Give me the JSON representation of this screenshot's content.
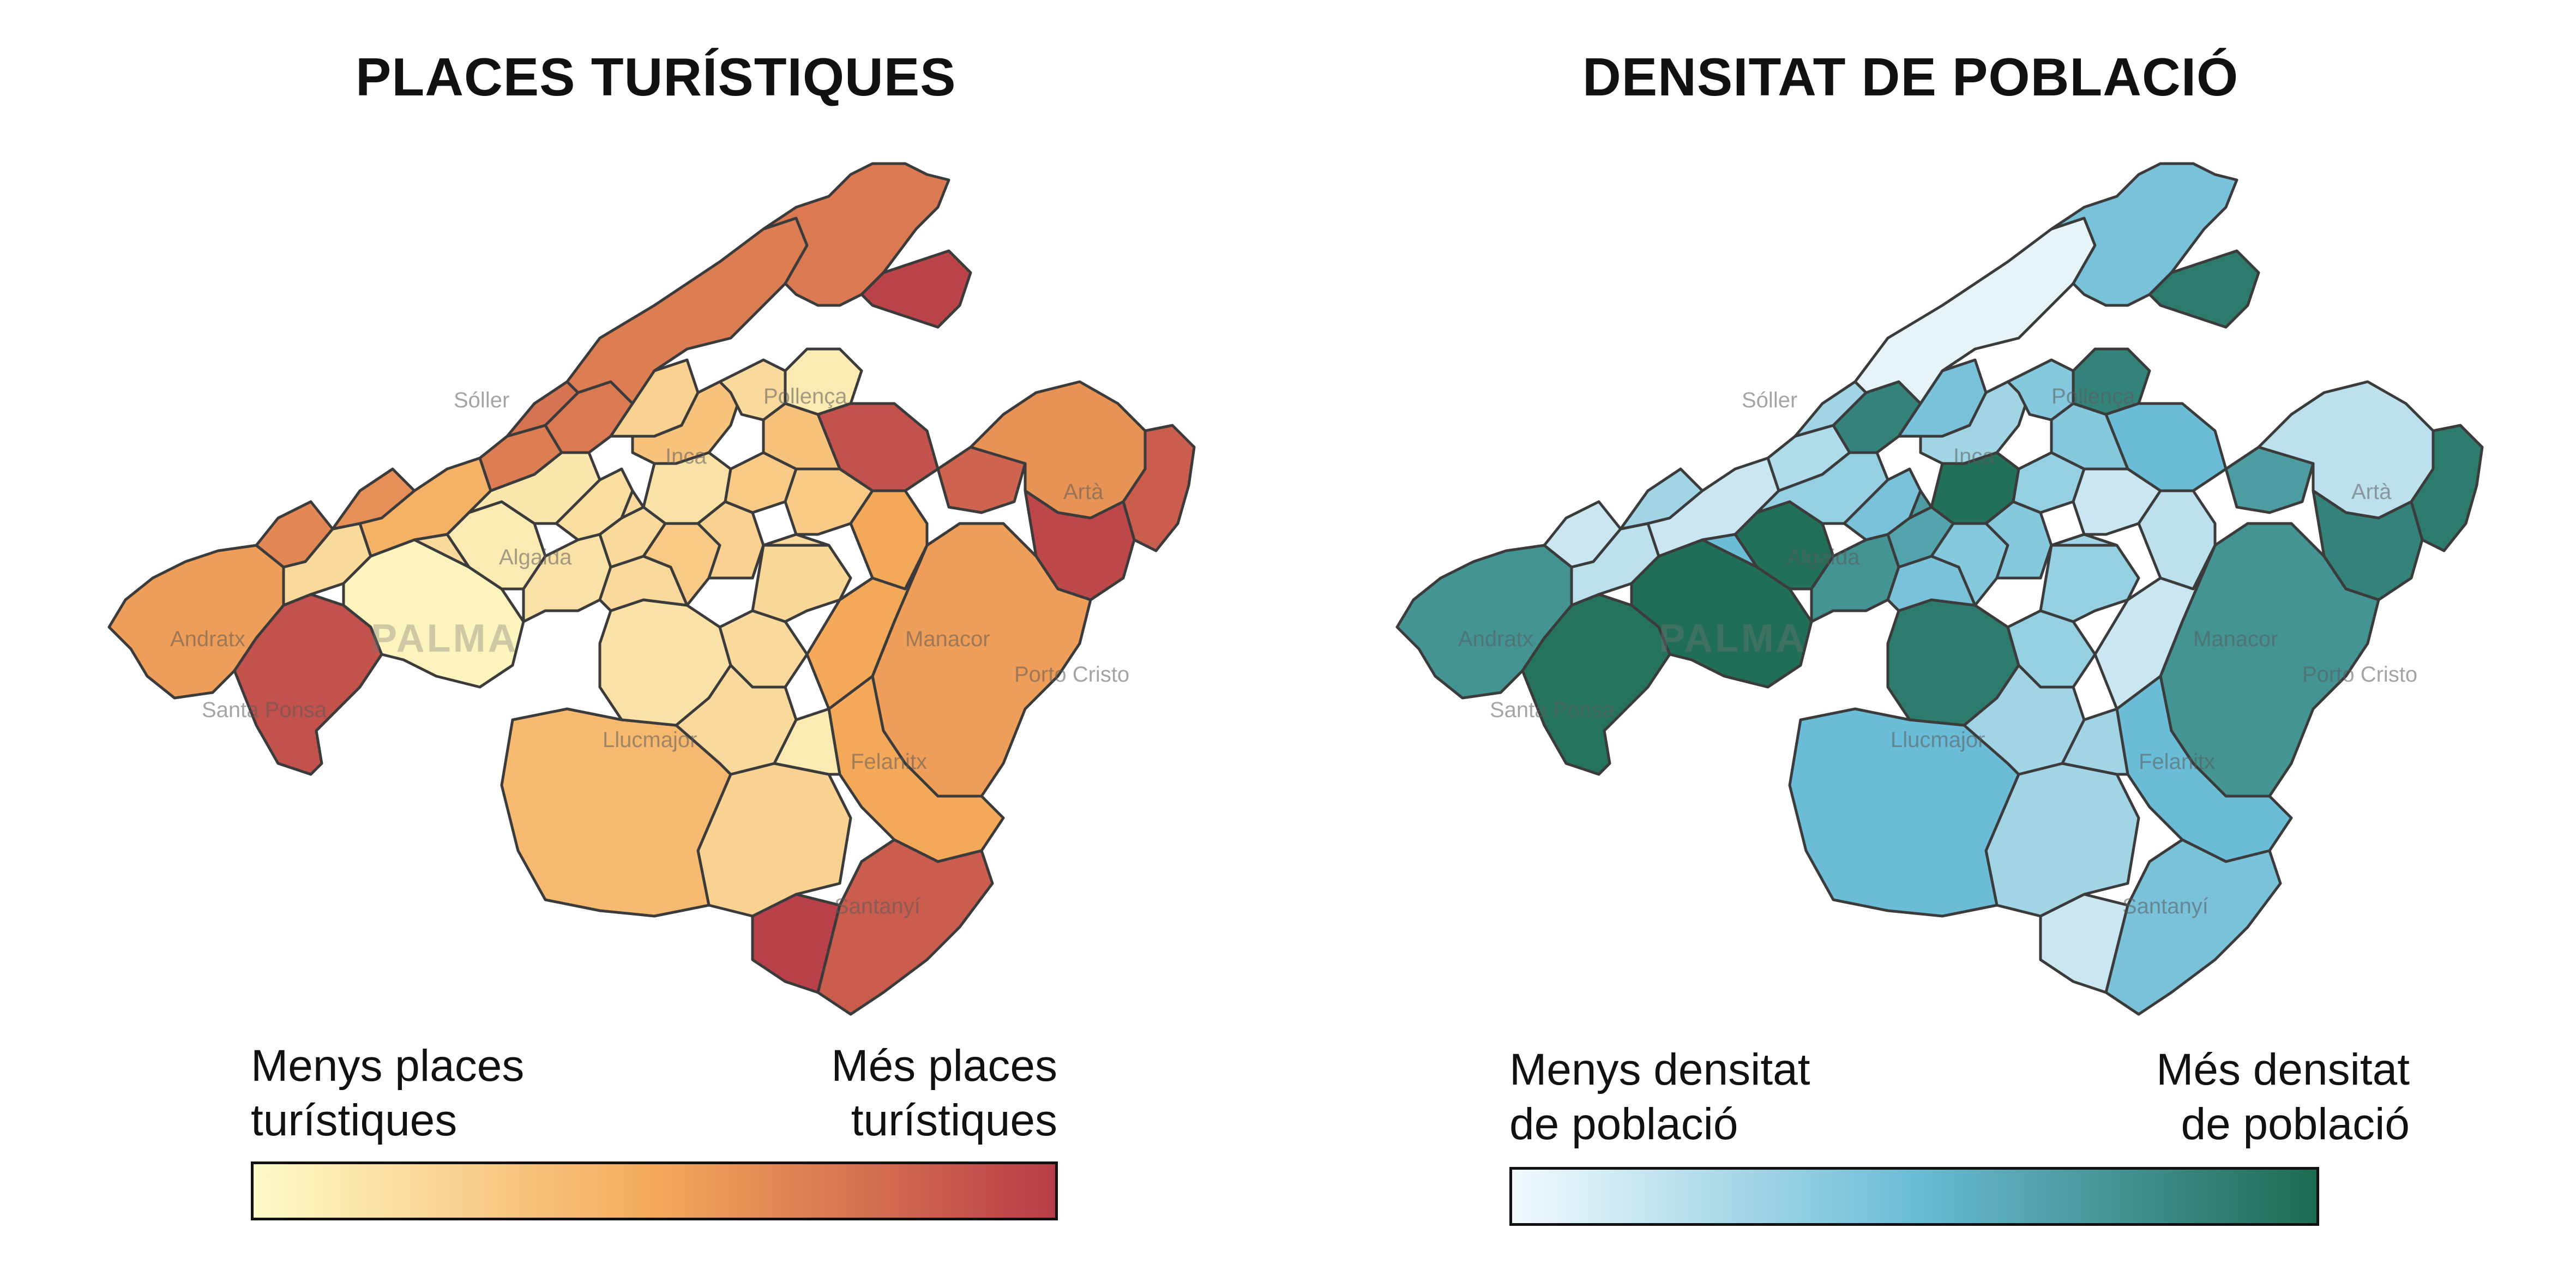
{
  "panels": {
    "tourism": {
      "title": "PLACES TURÍSTIQUES",
      "legend_low": [
        "Menys places",
        "turístiques"
      ],
      "legend_high": [
        "Més places",
        "turístiques"
      ],
      "colors": {
        "low": "#fdfbc8",
        "mid": "#f4a95a",
        "high": "#b83c48"
      }
    },
    "density": {
      "title": "DENSITAT DE POBLACIÓ",
      "legend_low": [
        "Menys densitat",
        "de població"
      ],
      "legend_high": [
        "Més densitat",
        "de població"
      ],
      "colors": {
        "low": "#f2fafd",
        "mid": "#6bbcd6",
        "high": "#1d6b52"
      }
    }
  },
  "basemap_labels": {
    "soller": "Sóller",
    "pollenca": "Pollença",
    "inca": "Inca",
    "arta": "Artà",
    "andratx": "Andratx",
    "palma": "PALMA",
    "santa_ponsa": "Santa Ponsa",
    "manacor": "Manacor",
    "porto_cristo": "Porto Cristo",
    "llucmajor": "Llucmajor",
    "felanitx": "Felanitx",
    "santanyi": "Santanyí",
    "algaida": "Algaida"
  }
}
